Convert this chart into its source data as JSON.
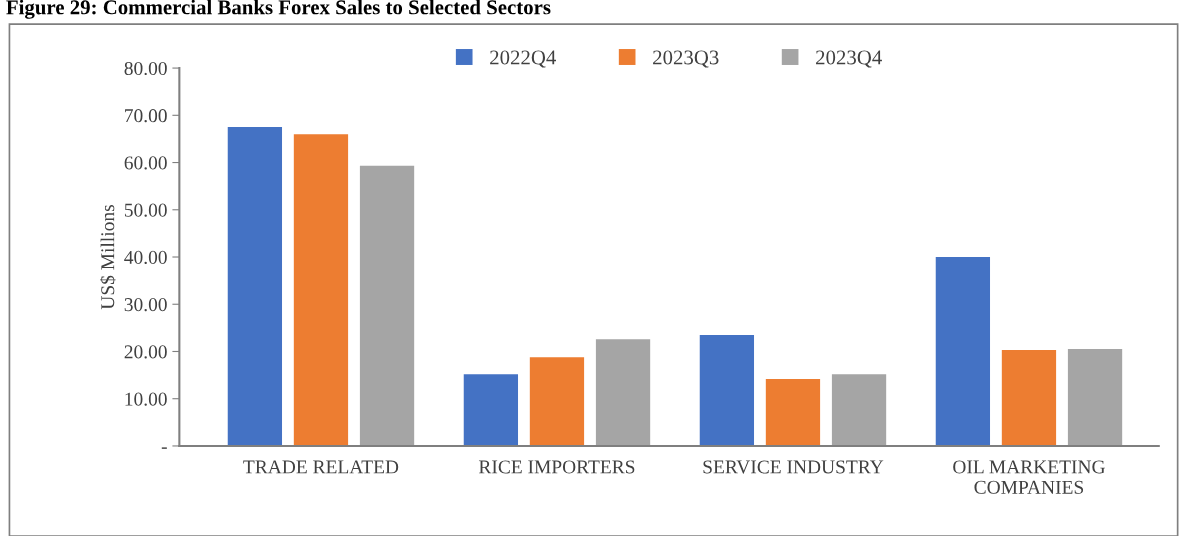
{
  "chart_data": {
    "type": "bar",
    "title": "Figure 29: Commercial Banks Forex Sales to Selected Sectors",
    "ylabel": "US$ Millions",
    "categories": [
      "TRADE RELATED",
      "RICE IMPORTERS",
      "SERVICE INDUSTRY",
      "OIL MARKETING\nCOMPANIES"
    ],
    "series": [
      {
        "name": "2022Q4",
        "color": "#4472c4",
        "values": [
          67.5,
          15.2,
          23.5,
          40.0
        ]
      },
      {
        "name": "2023Q3",
        "color": "#ed7d31",
        "values": [
          66.0,
          18.8,
          14.2,
          20.3
        ]
      },
      {
        "name": "2023Q4",
        "color": "#a5a5a5",
        "values": [
          59.3,
          22.6,
          15.2,
          20.5
        ]
      }
    ],
    "ylim": [
      0,
      80
    ],
    "yticks": [
      {
        "value": 0,
        "label": "-"
      },
      {
        "value": 10,
        "label": "10.00"
      },
      {
        "value": 20,
        "label": "20.00"
      },
      {
        "value": 30,
        "label": "30.00"
      },
      {
        "value": 40,
        "label": "40.00"
      },
      {
        "value": 50,
        "label": "50.00"
      },
      {
        "value": 60,
        "label": "60.00"
      },
      {
        "value": 70,
        "label": "70.00"
      },
      {
        "value": 80,
        "label": "80.00"
      }
    ],
    "grid": false,
    "legend": "top"
  }
}
